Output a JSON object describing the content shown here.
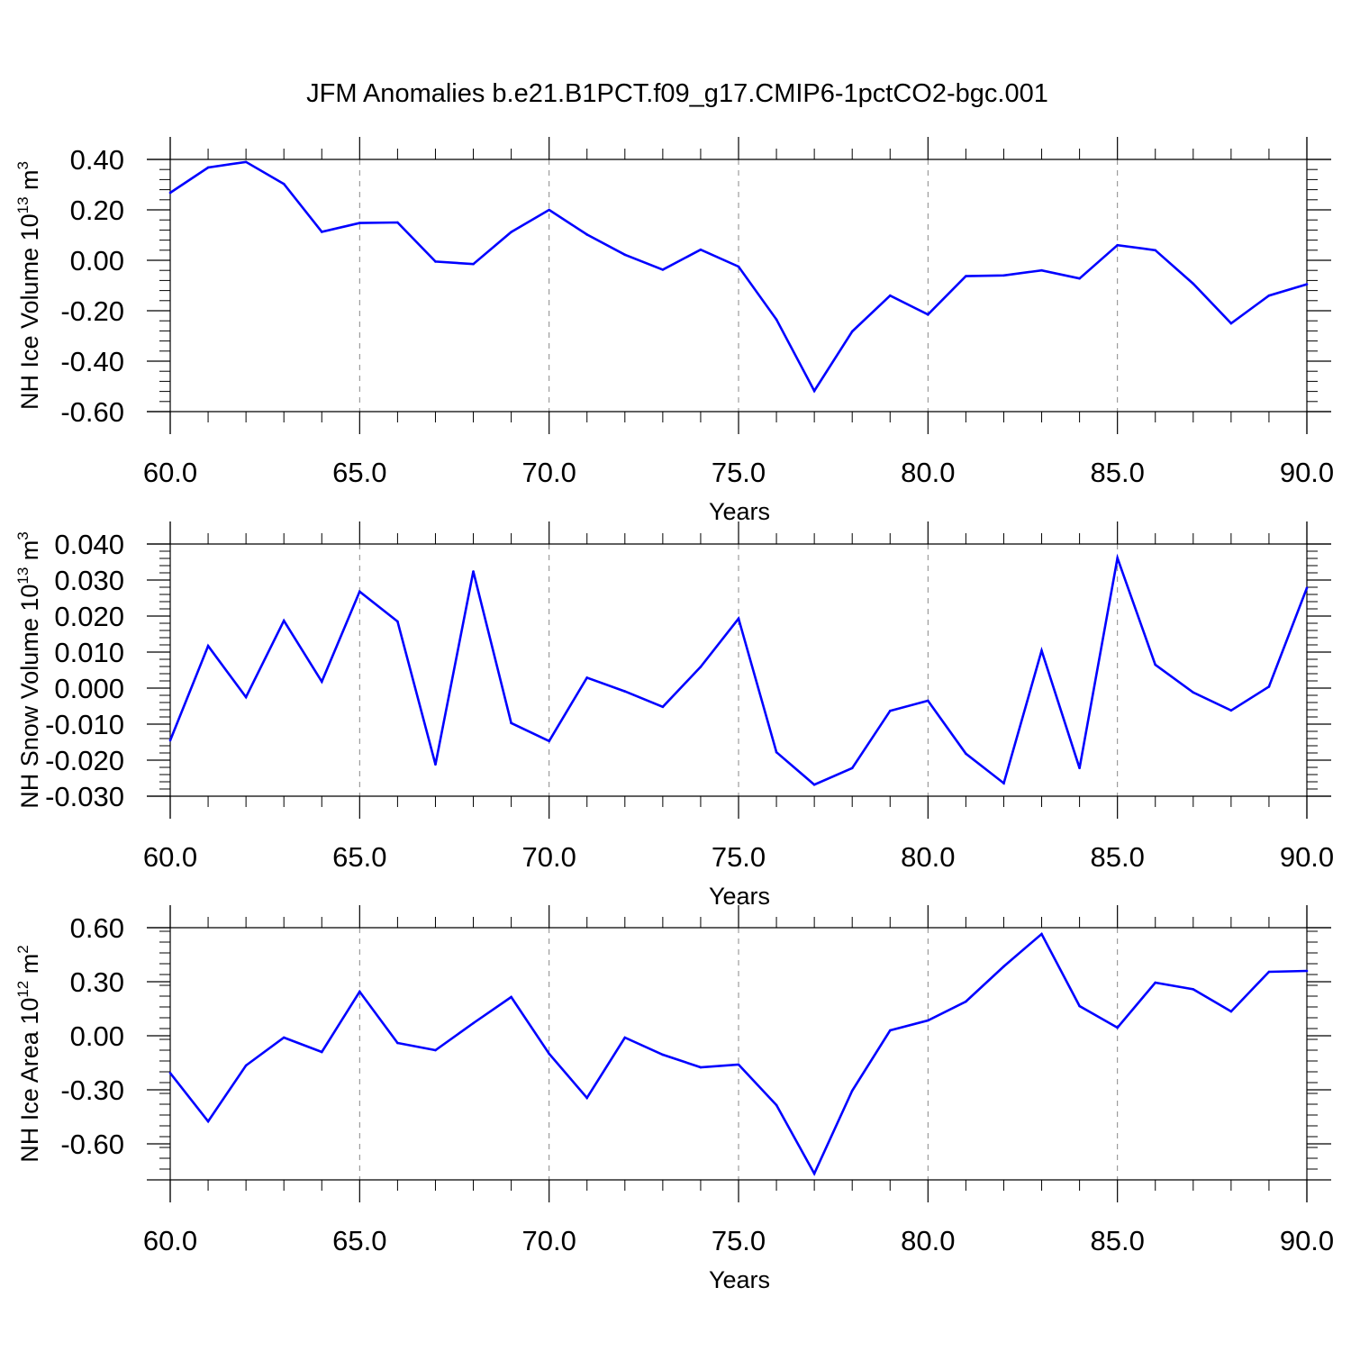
{
  "colors": {
    "series_line": "#0000ff",
    "axes": "#000000",
    "gridlines": "#888888",
    "background": "#ffffff"
  },
  "chart_data": [
    {
      "type": "line",
      "title": "JFM Anomalies b.e21.B1PCT.f09_g17.CMIP6-1pctCO2-bgc.001",
      "xlabel": "Years",
      "ylabel": "NH Ice Volume 10",
      "ylabel_sup": "13",
      "ylabel_unit": "m",
      "ylabel_unit_sup": "3",
      "xlim": [
        60,
        90
      ],
      "ylim": [
        -0.6,
        0.4
      ],
      "xticks": [
        60,
        65,
        70,
        75,
        80,
        85,
        90
      ],
      "xtick_labels": [
        "60.0",
        "65.0",
        "70.0",
        "75.0",
        "80.0",
        "85.0",
        "90.0"
      ],
      "yticks": [
        -0.6,
        -0.4,
        -0.2,
        0.0,
        0.2,
        0.4
      ],
      "ytick_labels": [
        "-0.60",
        "-0.40",
        "-0.20",
        "0.00",
        "0.20",
        "0.40"
      ],
      "grid": "vertical dashed at major x ticks",
      "x": [
        60,
        61,
        62,
        63,
        64,
        65,
        66,
        67,
        68,
        69,
        70,
        71,
        72,
        73,
        74,
        75,
        76,
        77,
        78,
        79,
        80,
        81,
        82,
        83,
        84,
        85,
        86,
        87,
        88,
        89,
        90
      ],
      "values": [
        0.268,
        0.368,
        0.39,
        0.303,
        0.113,
        0.148,
        0.15,
        -0.005,
        -0.015,
        0.112,
        0.2,
        0.102,
        0.022,
        -0.037,
        0.042,
        -0.025,
        -0.235,
        -0.518,
        -0.282,
        -0.14,
        -0.215,
        -0.063,
        -0.06,
        -0.04,
        -0.072,
        0.06,
        0.04,
        -0.093,
        -0.25,
        -0.14,
        -0.095
      ]
    },
    {
      "type": "line",
      "xlabel": "Years",
      "ylabel": "NH Snow Volume 10",
      "ylabel_sup": "13",
      "ylabel_unit": "m",
      "ylabel_unit_sup": "3",
      "xlim": [
        60,
        90
      ],
      "ylim": [
        -0.03,
        0.04
      ],
      "xticks": [
        60,
        65,
        70,
        75,
        80,
        85,
        90
      ],
      "xtick_labels": [
        "60.0",
        "65.0",
        "70.0",
        "75.0",
        "80.0",
        "85.0",
        "90.0"
      ],
      "yticks": [
        -0.03,
        -0.02,
        -0.01,
        0.0,
        0.01,
        0.02,
        0.03,
        0.04
      ],
      "ytick_labels": [
        "-0.030",
        "-0.020",
        "-0.010",
        "0.000",
        "0.010",
        "0.020",
        "0.030",
        "0.040"
      ],
      "grid": "vertical dashed at major x ticks",
      "x": [
        60,
        61,
        62,
        63,
        64,
        65,
        66,
        67,
        68,
        69,
        70,
        71,
        72,
        73,
        74,
        75,
        76,
        77,
        78,
        79,
        80,
        81,
        82,
        83,
        84,
        85,
        86,
        87,
        88,
        89,
        90
      ],
      "values": [
        -0.0145,
        0.0117,
        -0.0025,
        0.0187,
        0.0018,
        0.0268,
        0.0185,
        -0.0212,
        0.0324,
        -0.0097,
        -0.0147,
        0.0029,
        -0.0009,
        -0.0052,
        0.0059,
        0.0193,
        -0.0178,
        -0.0268,
        -0.0222,
        -0.0063,
        -0.0035,
        -0.0182,
        -0.0264,
        0.0104,
        -0.0222,
        0.0361,
        0.0065,
        -0.0012,
        -0.0062,
        0.0004,
        0.0278
      ]
    },
    {
      "type": "line",
      "xlabel": "Years",
      "ylabel": "NH Ice Area 10",
      "ylabel_sup": "12",
      "ylabel_unit": "m",
      "ylabel_unit_sup": "2",
      "xlim": [
        60,
        90
      ],
      "ylim": [
        -0.8,
        0.6
      ],
      "xticks": [
        60,
        65,
        70,
        75,
        80,
        85,
        90
      ],
      "xtick_labels": [
        "60.0",
        "65.0",
        "70.0",
        "75.0",
        "80.0",
        "85.0",
        "90.0"
      ],
      "yticks": [
        -0.6,
        -0.3,
        0.0,
        0.3,
        0.6
      ],
      "ytick_labels": [
        "-0.60",
        "-0.30",
        "0.00",
        "0.30",
        "0.60"
      ],
      "grid": "vertical dashed at major x ticks",
      "x": [
        60,
        61,
        62,
        63,
        64,
        65,
        66,
        67,
        68,
        69,
        70,
        71,
        72,
        73,
        74,
        75,
        76,
        77,
        78,
        79,
        80,
        81,
        82,
        83,
        84,
        85,
        86,
        87,
        88,
        89,
        90
      ],
      "values": [
        -0.207,
        -0.475,
        -0.165,
        -0.01,
        -0.09,
        0.245,
        -0.04,
        -0.08,
        0.07,
        0.215,
        -0.1,
        -0.345,
        -0.01,
        -0.105,
        -0.175,
        -0.16,
        -0.385,
        -0.765,
        -0.305,
        0.03,
        0.085,
        0.19,
        0.385,
        0.565,
        0.165,
        0.045,
        0.295,
        0.258,
        0.135,
        0.355,
        0.36
      ]
    }
  ]
}
